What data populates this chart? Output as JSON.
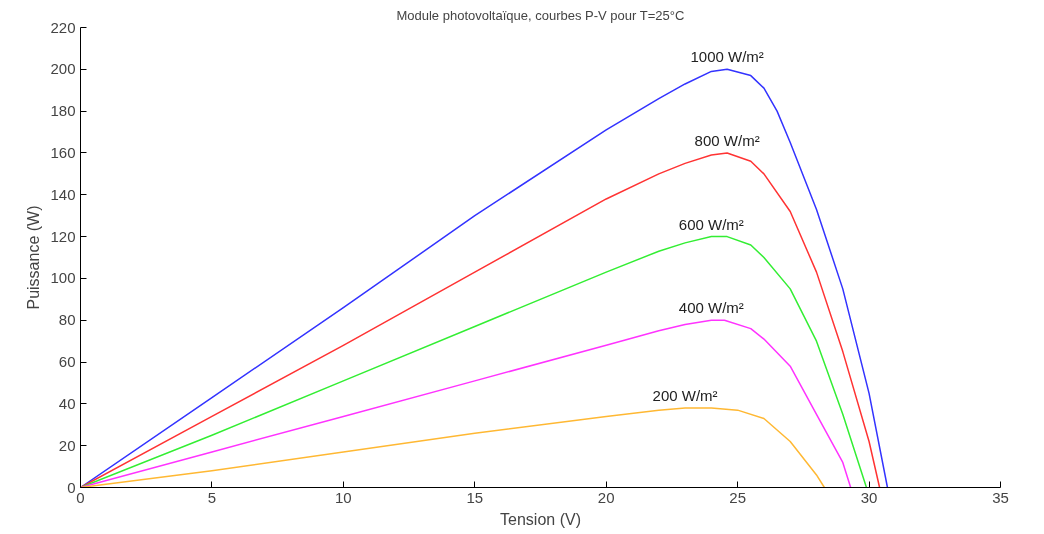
{
  "chart_data": {
    "type": "line",
    "title": "Module photovoltaïque, courbes P-V pour T=25°C",
    "xlabel": "Tension (V)",
    "ylabel": "Puissance (W)",
    "xlim": [
      0,
      35
    ],
    "ylim": [
      0,
      220
    ],
    "xticks": [
      0,
      5,
      10,
      15,
      20,
      25,
      30,
      35
    ],
    "yticks": [
      0,
      20,
      40,
      60,
      80,
      100,
      120,
      140,
      160,
      180,
      200,
      220
    ],
    "grid": false,
    "legend": false,
    "marker": "none",
    "line_style": "solid",
    "series": [
      {
        "name": "1000 W/m²",
        "color": "#3333ff",
        "x": [
          0,
          5,
          10,
          15,
          20,
          22,
          23,
          24,
          24.6,
          25.5,
          26,
          26.5,
          27,
          28,
          29,
          30,
          30.7
        ],
        "values": [
          0,
          43,
          86,
          130,
          171,
          186,
          193,
          199,
          200,
          197,
          191,
          180,
          165,
          133,
          95,
          45,
          0
        ]
      },
      {
        "name": "800 W/m²",
        "color": "#ff3333",
        "x": [
          0,
          5,
          10,
          15,
          20,
          22,
          23,
          24,
          24.6,
          25.5,
          26,
          27,
          28,
          29,
          30,
          30.4
        ],
        "values": [
          0,
          34,
          68,
          103,
          138,
          150,
          155,
          159,
          160,
          156,
          150,
          132,
          103,
          65,
          22,
          0
        ]
      },
      {
        "name": "600 W/m²",
        "color": "#33ee33",
        "x": [
          0,
          5,
          10,
          15,
          20,
          22,
          23,
          24,
          24.6,
          25.5,
          26,
          27,
          28,
          29,
          29.9
        ],
        "values": [
          0,
          25,
          51,
          77,
          103,
          113,
          117,
          120,
          120,
          116,
          110,
          95,
          70,
          35,
          0
        ]
      },
      {
        "name": "400 W/m²",
        "color": "#ff33ff",
        "x": [
          0,
          5,
          10,
          15,
          20,
          22,
          23,
          24,
          24.5,
          25.5,
          26,
          27,
          28,
          29,
          29.3
        ],
        "values": [
          0,
          17,
          34,
          51,
          68,
          75,
          78,
          80,
          80,
          76,
          71,
          58,
          35,
          12,
          0
        ]
      },
      {
        "name": "200 W/m²",
        "color": "#ffb833",
        "x": [
          0,
          5,
          10,
          15,
          20,
          22,
          23,
          24,
          25,
          26,
          27,
          28,
          28.3
        ],
        "values": [
          0,
          8,
          17,
          26,
          34,
          37,
          38,
          38,
          37,
          33,
          22,
          6,
          0
        ]
      }
    ]
  }
}
